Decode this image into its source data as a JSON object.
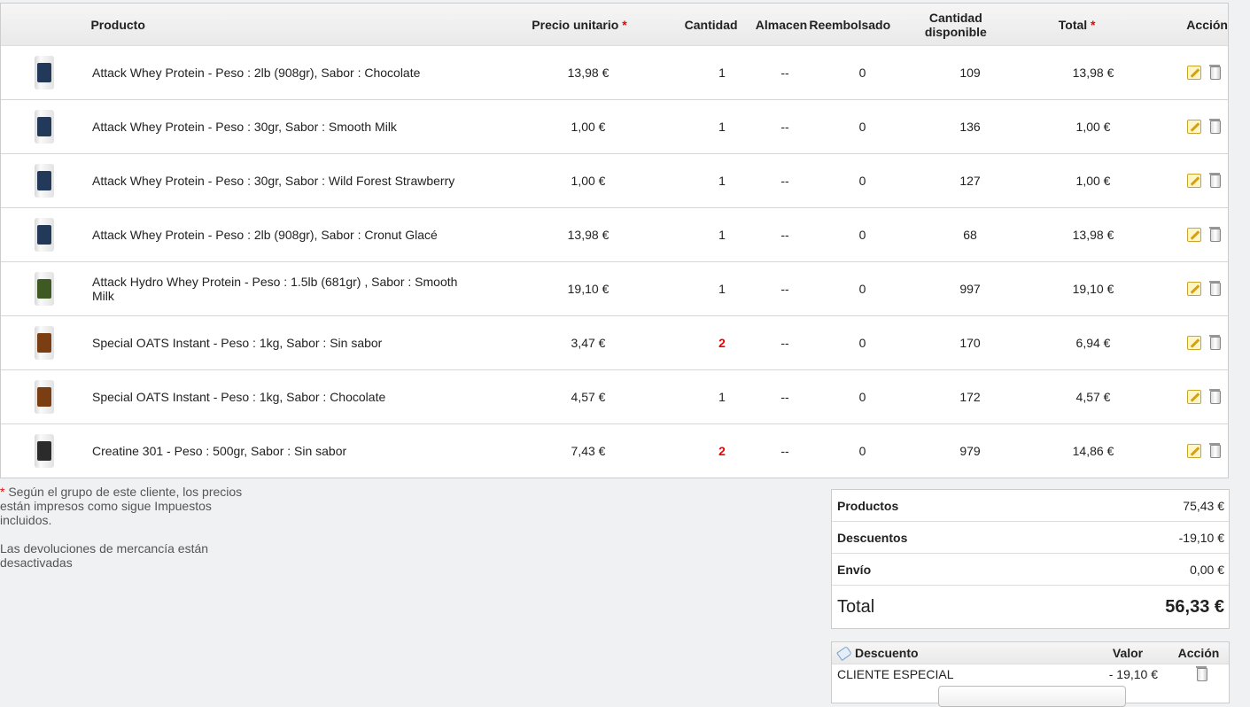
{
  "table": {
    "headers": {
      "producto": "Producto",
      "precio": "Precio unitario",
      "cantidad": "Cantidad",
      "almacen": "Almacen",
      "reembolsado": "Reembolsado",
      "disponible": "Cantidad disponible",
      "total": "Total",
      "accion": "Acción",
      "required_mark": "*"
    },
    "rows": [
      {
        "name": "Attack Whey Protein - Peso : 2lb (908gr), Sabor : Chocolate",
        "price": "13,98 €",
        "qty": "1",
        "qty_highlight": false,
        "almacen": "--",
        "reembolsado": "0",
        "disponible": "109",
        "total": "13,98 €",
        "thumb_icon": "product-thumbnail-icon"
      },
      {
        "name": "Attack Whey Protein - Peso : 30gr, Sabor : Smooth Milk",
        "price": "1,00 €",
        "qty": "1",
        "qty_highlight": false,
        "almacen": "--",
        "reembolsado": "0",
        "disponible": "136",
        "total": "1,00 €",
        "thumb_icon": "product-thumbnail-icon"
      },
      {
        "name": "Attack Whey Protein - Peso : 30gr, Sabor : Wild Forest Strawberry",
        "price": "1,00 €",
        "qty": "1",
        "qty_highlight": false,
        "almacen": "--",
        "reembolsado": "0",
        "disponible": "127",
        "total": "1,00 €",
        "thumb_icon": "product-thumbnail-icon"
      },
      {
        "name": "Attack Whey Protein - Peso : 2lb (908gr), Sabor : Cronut Glacé",
        "price": "13,98 €",
        "qty": "1",
        "qty_highlight": false,
        "almacen": "--",
        "reembolsado": "0",
        "disponible": "68",
        "total": "13,98 €",
        "thumb_icon": "product-thumbnail-icon"
      },
      {
        "name": "Attack Hydro Whey Protein - Peso : 1.5lb (681gr) , Sabor : Smooth Milk",
        "price": "19,10 €",
        "qty": "1",
        "qty_highlight": false,
        "almacen": "--",
        "reembolsado": "0",
        "disponible": "997",
        "total": "19,10 €",
        "thumb_icon": "product-thumbnail-icon"
      },
      {
        "name": "Special OATS Instant - Peso : 1kg, Sabor : Sin sabor",
        "price": "3,47 €",
        "qty": "2",
        "qty_highlight": true,
        "almacen": "--",
        "reembolsado": "0",
        "disponible": "170",
        "total": "6,94 €",
        "thumb_icon": "product-thumbnail-icon"
      },
      {
        "name": "Special OATS Instant - Peso : 1kg, Sabor : Chocolate",
        "price": "4,57 €",
        "qty": "1",
        "qty_highlight": false,
        "almacen": "--",
        "reembolsado": "0",
        "disponible": "172",
        "total": "4,57 €",
        "thumb_icon": "product-thumbnail-icon"
      },
      {
        "name": "Creatine 301 - Peso : 500gr, Sabor : Sin sabor",
        "price": "7,43 €",
        "qty": "2",
        "qty_highlight": true,
        "almacen": "--",
        "reembolsado": "0",
        "disponible": "979",
        "total": "14,86 €",
        "thumb_icon": "product-thumbnail-icon"
      }
    ],
    "row_actions": {
      "edit_icon": "edit-icon",
      "delete_icon": "trash-icon"
    }
  },
  "notes": {
    "mark": "*",
    "price_note": " Según el grupo de este cliente, los precios están impresos como sigue Impuestos incluidos.",
    "returns_note": "Las devoluciones de mercancía están desactivadas"
  },
  "summary": {
    "productos_label": "Productos",
    "productos_value": "75,43 €",
    "descuentos_label": "Descuentos",
    "descuentos_value": "-19,10 €",
    "envio_label": "Envío",
    "envio_value": "0,00 €",
    "total_label": "Total",
    "total_value": "56,33 €"
  },
  "discounts": {
    "header_name": "Descuento",
    "header_value": "Valor",
    "header_action": "Acción",
    "rows": [
      {
        "name": "CLIENTE ESPECIAL",
        "value": "- 19,10 €"
      }
    ]
  },
  "colors": {
    "required": "#e00000",
    "accent_bg": "#eff1f2"
  }
}
